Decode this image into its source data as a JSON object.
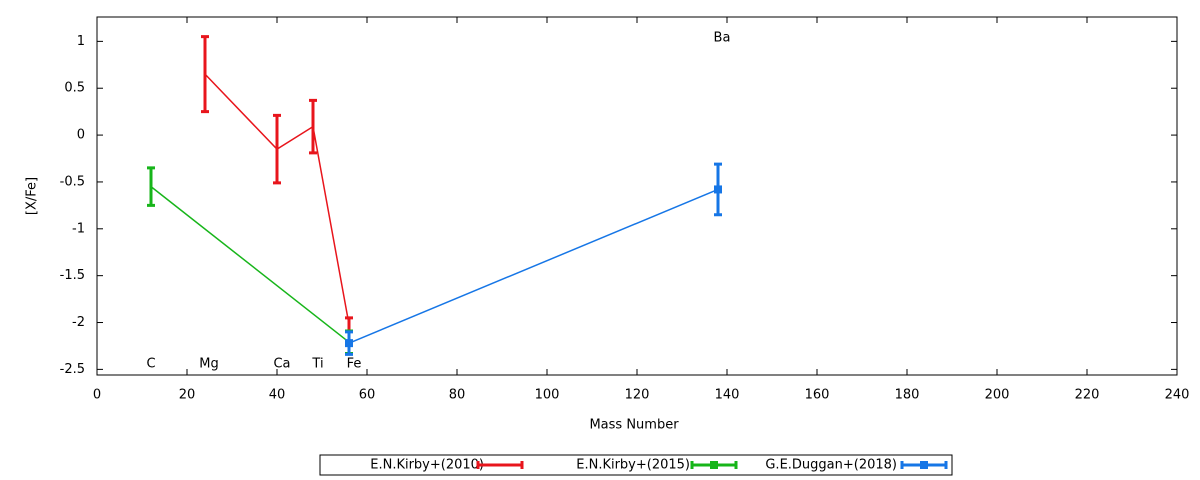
{
  "chart_data": {
    "type": "line",
    "xlabel": "Mass Number",
    "ylabel": "[X/Fe]",
    "xlim": [
      0,
      240
    ],
    "ylim": [
      -2.56,
      1.26
    ],
    "xticks": [
      0,
      20,
      40,
      60,
      80,
      100,
      120,
      140,
      160,
      180,
      200,
      220,
      240
    ],
    "yticks": [
      1,
      0.5,
      0,
      -0.5,
      -1,
      -1.5,
      -2,
      -2.5
    ],
    "annotations": [
      "C",
      "Mg",
      "Ca",
      "Ti",
      "Fe",
      "Ba"
    ],
    "legend": "bottom",
    "series": [
      {
        "name": "E.N.Kirby+(2010)",
        "color": "#e8151c",
        "x": [
          24,
          40,
          48,
          56
        ],
        "values": [
          0.65,
          -0.15,
          0.09,
          -2.02
        ],
        "errors": [
          0.4,
          0.36,
          0.28,
          0.07
        ]
      },
      {
        "name": "E.N.Kirby+(2015)",
        "color": "#17b51a",
        "x": [
          12,
          56
        ],
        "values": [
          -0.55,
          -2.21
        ],
        "errors": [
          0.2,
          0.12
        ]
      },
      {
        "name": "G.E.Duggan+(2018)",
        "color": "#1676e6",
        "x": [
          56,
          138
        ],
        "values": [
          -2.22,
          -0.58
        ],
        "errors": [
          0.12,
          0.27
        ]
      }
    ]
  }
}
